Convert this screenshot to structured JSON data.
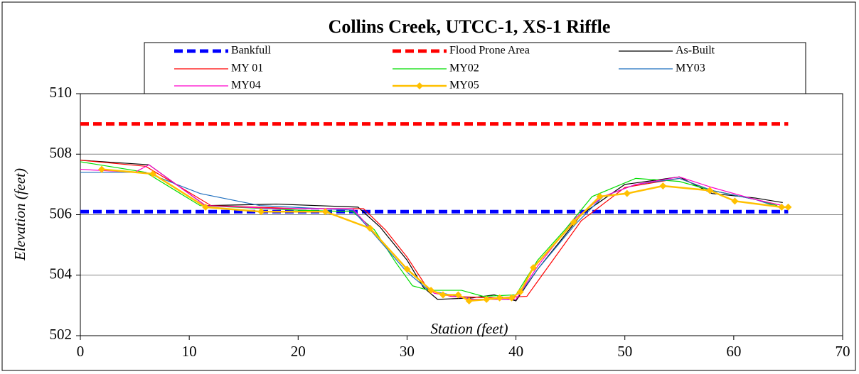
{
  "chart_data": {
    "type": "line",
    "title": "Collins Creek, UTCC-1, XS-1 Riffle",
    "xlabel": "Station (feet)",
    "ylabel": "Elevation (feet)",
    "xlim": [
      0,
      70
    ],
    "xticks": [
      0,
      10,
      20,
      30,
      40,
      50,
      60,
      70
    ],
    "ylim": [
      502,
      510
    ],
    "yticks": [
      502,
      504,
      506,
      508,
      510
    ],
    "grid": true,
    "series": [
      {
        "name": "Bankfull",
        "color": "#0000ff",
        "dashed": true,
        "x": [
          0,
          65
        ],
        "values": [
          506.1,
          506.1
        ]
      },
      {
        "name": "Flood Prone Area",
        "color": "#ff0000",
        "dashed": true,
        "x": [
          0,
          65
        ],
        "values": [
          509.0,
          509.0
        ]
      },
      {
        "name": "As-Built",
        "color": "#000000",
        "x": [
          0,
          6.3,
          11.5,
          18,
          25.5,
          27.5,
          30,
          31.5,
          32.8,
          36,
          38,
          40,
          42,
          46,
          50,
          55,
          58,
          62,
          64.5
        ],
        "values": [
          507.8,
          507.65,
          506.3,
          506.35,
          506.25,
          505.6,
          504.5,
          503.6,
          503.2,
          503.25,
          503.35,
          503.15,
          504.2,
          506.0,
          507.0,
          507.25,
          506.7,
          506.55,
          506.4
        ]
      },
      {
        "name": "MY 01",
        "color": "#ff0000",
        "x": [
          0,
          6,
          12,
          20,
          26,
          28,
          30,
          32,
          34,
          38,
          41,
          43,
          46,
          50,
          55,
          58,
          62,
          64.5
        ],
        "values": [
          507.8,
          507.6,
          506.3,
          506.2,
          506.2,
          505.5,
          504.6,
          503.5,
          503.3,
          503.25,
          503.3,
          504.3,
          505.8,
          506.9,
          507.2,
          506.8,
          506.5,
          506.3
        ]
      },
      {
        "name": "MY02",
        "color": "#00dd00",
        "x": [
          0,
          6,
          11,
          20,
          25,
          27,
          29,
          30.5,
          32,
          35,
          37,
          40,
          42,
          44.5,
          47,
          51,
          55,
          58,
          62,
          64
        ],
        "values": [
          507.75,
          507.4,
          506.3,
          506.15,
          506.1,
          505.5,
          504.4,
          503.65,
          503.5,
          503.5,
          503.3,
          503.35,
          504.5,
          505.5,
          506.6,
          507.2,
          507.1,
          506.8,
          506.5,
          506.3
        ]
      },
      {
        "name": "MY03",
        "color": "#1f6fbf",
        "x": [
          0,
          6,
          11,
          16.5,
          25,
          26.5,
          30,
          32,
          36,
          40,
          42,
          45.5,
          48,
          51,
          55,
          58,
          62,
          64.5
        ],
        "values": [
          507.4,
          507.4,
          506.7,
          506.3,
          506.15,
          505.55,
          504.1,
          503.5,
          503.2,
          503.2,
          504.2,
          505.7,
          506.6,
          507.0,
          507.2,
          506.8,
          506.5,
          506.2
        ]
      },
      {
        "name": "MY04",
        "color": "#ff00cc",
        "x": [
          0,
          5,
          6.3,
          11.5,
          18,
          25,
          26.5,
          30,
          32.5,
          36,
          40,
          42,
          45.5,
          48,
          51,
          55,
          58,
          62,
          64.5
        ],
        "values": [
          507.5,
          507.4,
          507.65,
          506.3,
          506.2,
          506.2,
          505.6,
          504.2,
          503.4,
          503.2,
          503.2,
          504.3,
          505.9,
          506.6,
          507.0,
          507.25,
          506.9,
          506.5,
          506.3
        ]
      },
      {
        "name": "MY05",
        "color": "#ffc000",
        "marker": "diamond",
        "x": [
          1.96,
          6.66,
          11.5,
          16.6,
          22.5,
          26.6,
          30,
          32.2,
          33.3,
          34.7,
          35.7,
          37.3,
          38.5,
          39.6,
          40.4,
          41.6,
          45.3,
          47.7,
          50.2,
          53.5,
          57.8,
          60.1,
          64.4,
          65
        ],
        "values": [
          507.5,
          507.35,
          506.25,
          506.1,
          506.1,
          505.55,
          504.2,
          503.5,
          503.35,
          503.35,
          503.15,
          503.2,
          503.25,
          503.25,
          503.45,
          504.25,
          505.75,
          506.6,
          506.7,
          506.95,
          506.8,
          506.45,
          506.25,
          506.25
        ]
      }
    ]
  }
}
